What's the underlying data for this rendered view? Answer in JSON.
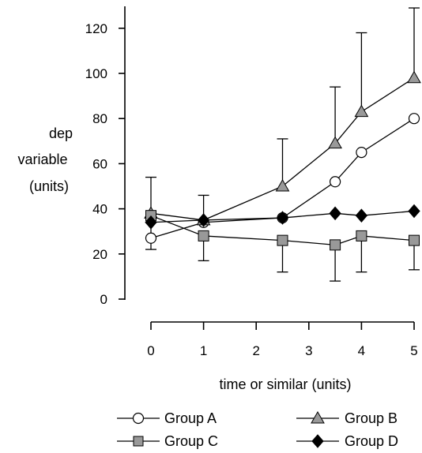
{
  "chart_data": {
    "type": "line",
    "title": "",
    "xlabel": "time or similar (units)",
    "ylabel": [
      "dep",
      "variable",
      "(units)"
    ],
    "xlim": [
      0,
      5
    ],
    "ylim": [
      0,
      130
    ],
    "xticks": [
      0,
      1,
      2,
      3,
      4,
      5
    ],
    "yticks": [
      0,
      20,
      40,
      60,
      80,
      100,
      120
    ],
    "grid": false,
    "legend_position": "bottom",
    "series": [
      {
        "name": "Group A",
        "marker": "circle-open",
        "x": [
          0,
          1,
          2.5,
          3.5,
          4,
          5
        ],
        "y": [
          27,
          34,
          36,
          52,
          65,
          80
        ]
      },
      {
        "name": "Group B",
        "marker": "triangle-gray",
        "x": [
          0,
          1,
          2.5,
          3.5,
          4,
          5
        ],
        "y": [
          38,
          35,
          50,
          69,
          83,
          98
        ],
        "error_plus": [
          16,
          11,
          21,
          25,
          35,
          31
        ]
      },
      {
        "name": "Group C",
        "marker": "square-gray",
        "x": [
          0,
          1,
          2.5,
          3.5,
          4,
          5
        ],
        "y": [
          37,
          28,
          26,
          24,
          28,
          26
        ],
        "error_minus": [
          15,
          11,
          14,
          16,
          16,
          13
        ]
      },
      {
        "name": "Group D",
        "marker": "diamond-black",
        "x": [
          0,
          1,
          2.5,
          3.5,
          4,
          5
        ],
        "y": [
          34,
          35,
          36,
          38,
          37,
          39
        ]
      }
    ]
  }
}
